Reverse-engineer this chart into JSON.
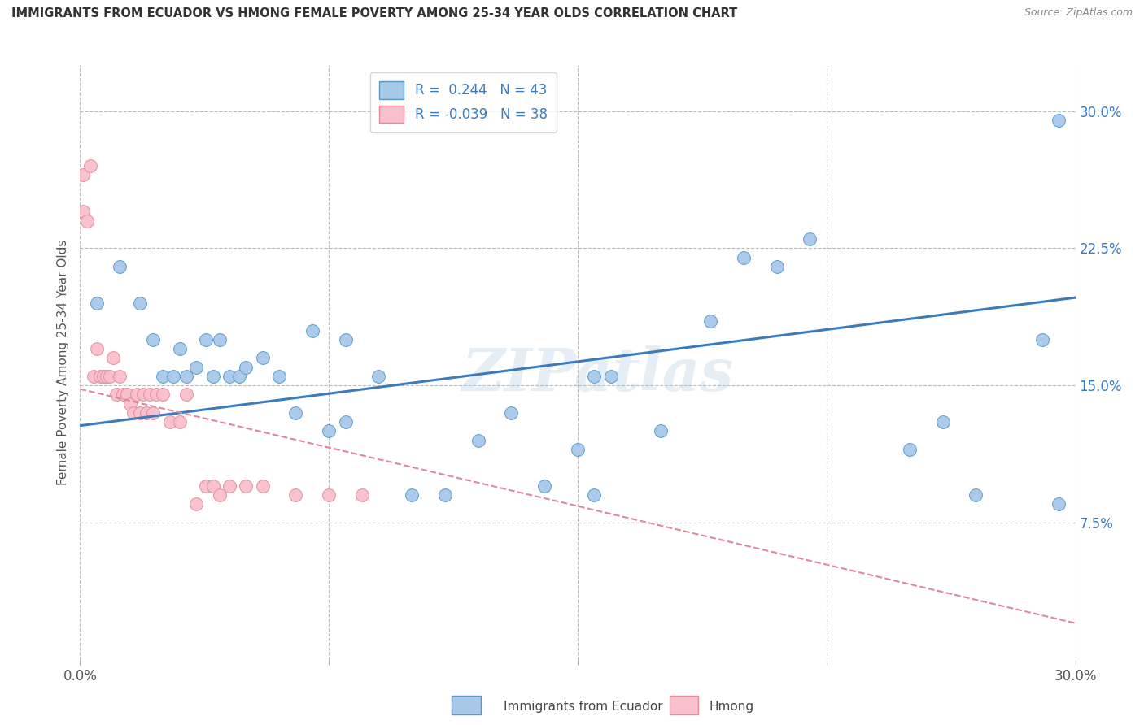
{
  "title": "IMMIGRANTS FROM ECUADOR VS HMONG FEMALE POVERTY AMONG 25-34 YEAR OLDS CORRELATION CHART",
  "source": "Source: ZipAtlas.com",
  "ylabel": "Female Poverty Among 25-34 Year Olds",
  "legend_blue_R": "0.244",
  "legend_blue_N": "43",
  "legend_pink_R": "-0.039",
  "legend_pink_N": "38",
  "legend_blue_label": "Immigrants from Ecuador",
  "legend_pink_label": "Hmong",
  "blue_color": "#a8c8e8",
  "blue_edge_color": "#5599cc",
  "blue_line_color": "#3a7bbf",
  "pink_color": "#f8c0cc",
  "pink_edge_color": "#e88898",
  "pink_line_color": "#e08898",
  "watermark": "ZIPatlas",
  "xlim": [
    0.0,
    0.3
  ],
  "ylim": [
    0.0,
    0.325
  ],
  "ytick_vals": [
    0.075,
    0.15,
    0.225,
    0.3
  ],
  "blue_line_x": [
    0.0,
    0.3
  ],
  "blue_line_y": [
    0.128,
    0.198
  ],
  "pink_line_x": [
    0.0,
    0.3
  ],
  "pink_line_y": [
    0.148,
    0.02
  ],
  "blue_scatter_x": [
    0.005,
    0.012,
    0.018,
    0.022,
    0.025,
    0.028,
    0.03,
    0.032,
    0.035,
    0.038,
    0.04,
    0.042,
    0.045,
    0.048,
    0.05,
    0.055,
    0.06,
    0.065,
    0.07,
    0.075,
    0.08,
    0.09,
    0.1,
    0.11,
    0.12,
    0.13,
    0.14,
    0.15,
    0.155,
    0.16,
    0.175,
    0.19,
    0.2,
    0.21,
    0.22,
    0.25,
    0.26,
    0.27,
    0.29,
    0.295,
    0.155,
    0.08,
    0.295
  ],
  "blue_scatter_y": [
    0.195,
    0.215,
    0.195,
    0.175,
    0.155,
    0.155,
    0.17,
    0.155,
    0.16,
    0.175,
    0.155,
    0.175,
    0.155,
    0.155,
    0.16,
    0.165,
    0.155,
    0.135,
    0.18,
    0.125,
    0.175,
    0.155,
    0.09,
    0.09,
    0.12,
    0.135,
    0.095,
    0.115,
    0.155,
    0.155,
    0.125,
    0.185,
    0.22,
    0.215,
    0.23,
    0.115,
    0.13,
    0.09,
    0.175,
    0.295,
    0.09,
    0.13,
    0.085
  ],
  "pink_scatter_x": [
    0.001,
    0.001,
    0.002,
    0.003,
    0.004,
    0.005,
    0.006,
    0.007,
    0.008,
    0.009,
    0.01,
    0.011,
    0.012,
    0.013,
    0.014,
    0.015,
    0.016,
    0.017,
    0.018,
    0.019,
    0.02,
    0.021,
    0.022,
    0.023,
    0.025,
    0.027,
    0.03,
    0.032,
    0.035,
    0.038,
    0.04,
    0.042,
    0.045,
    0.05,
    0.055,
    0.065,
    0.075,
    0.085
  ],
  "pink_scatter_y": [
    0.265,
    0.245,
    0.24,
    0.27,
    0.155,
    0.17,
    0.155,
    0.155,
    0.155,
    0.155,
    0.165,
    0.145,
    0.155,
    0.145,
    0.145,
    0.14,
    0.135,
    0.145,
    0.135,
    0.145,
    0.135,
    0.145,
    0.135,
    0.145,
    0.145,
    0.13,
    0.13,
    0.145,
    0.085,
    0.095,
    0.095,
    0.09,
    0.095,
    0.095,
    0.095,
    0.09,
    0.09,
    0.09
  ],
  "background_color": "#ffffff",
  "grid_color": "#bbbbbb",
  "title_color": "#333333",
  "source_color": "#888888",
  "axis_label_color": "#555555",
  "right_tick_color": "#3a7bbf"
}
